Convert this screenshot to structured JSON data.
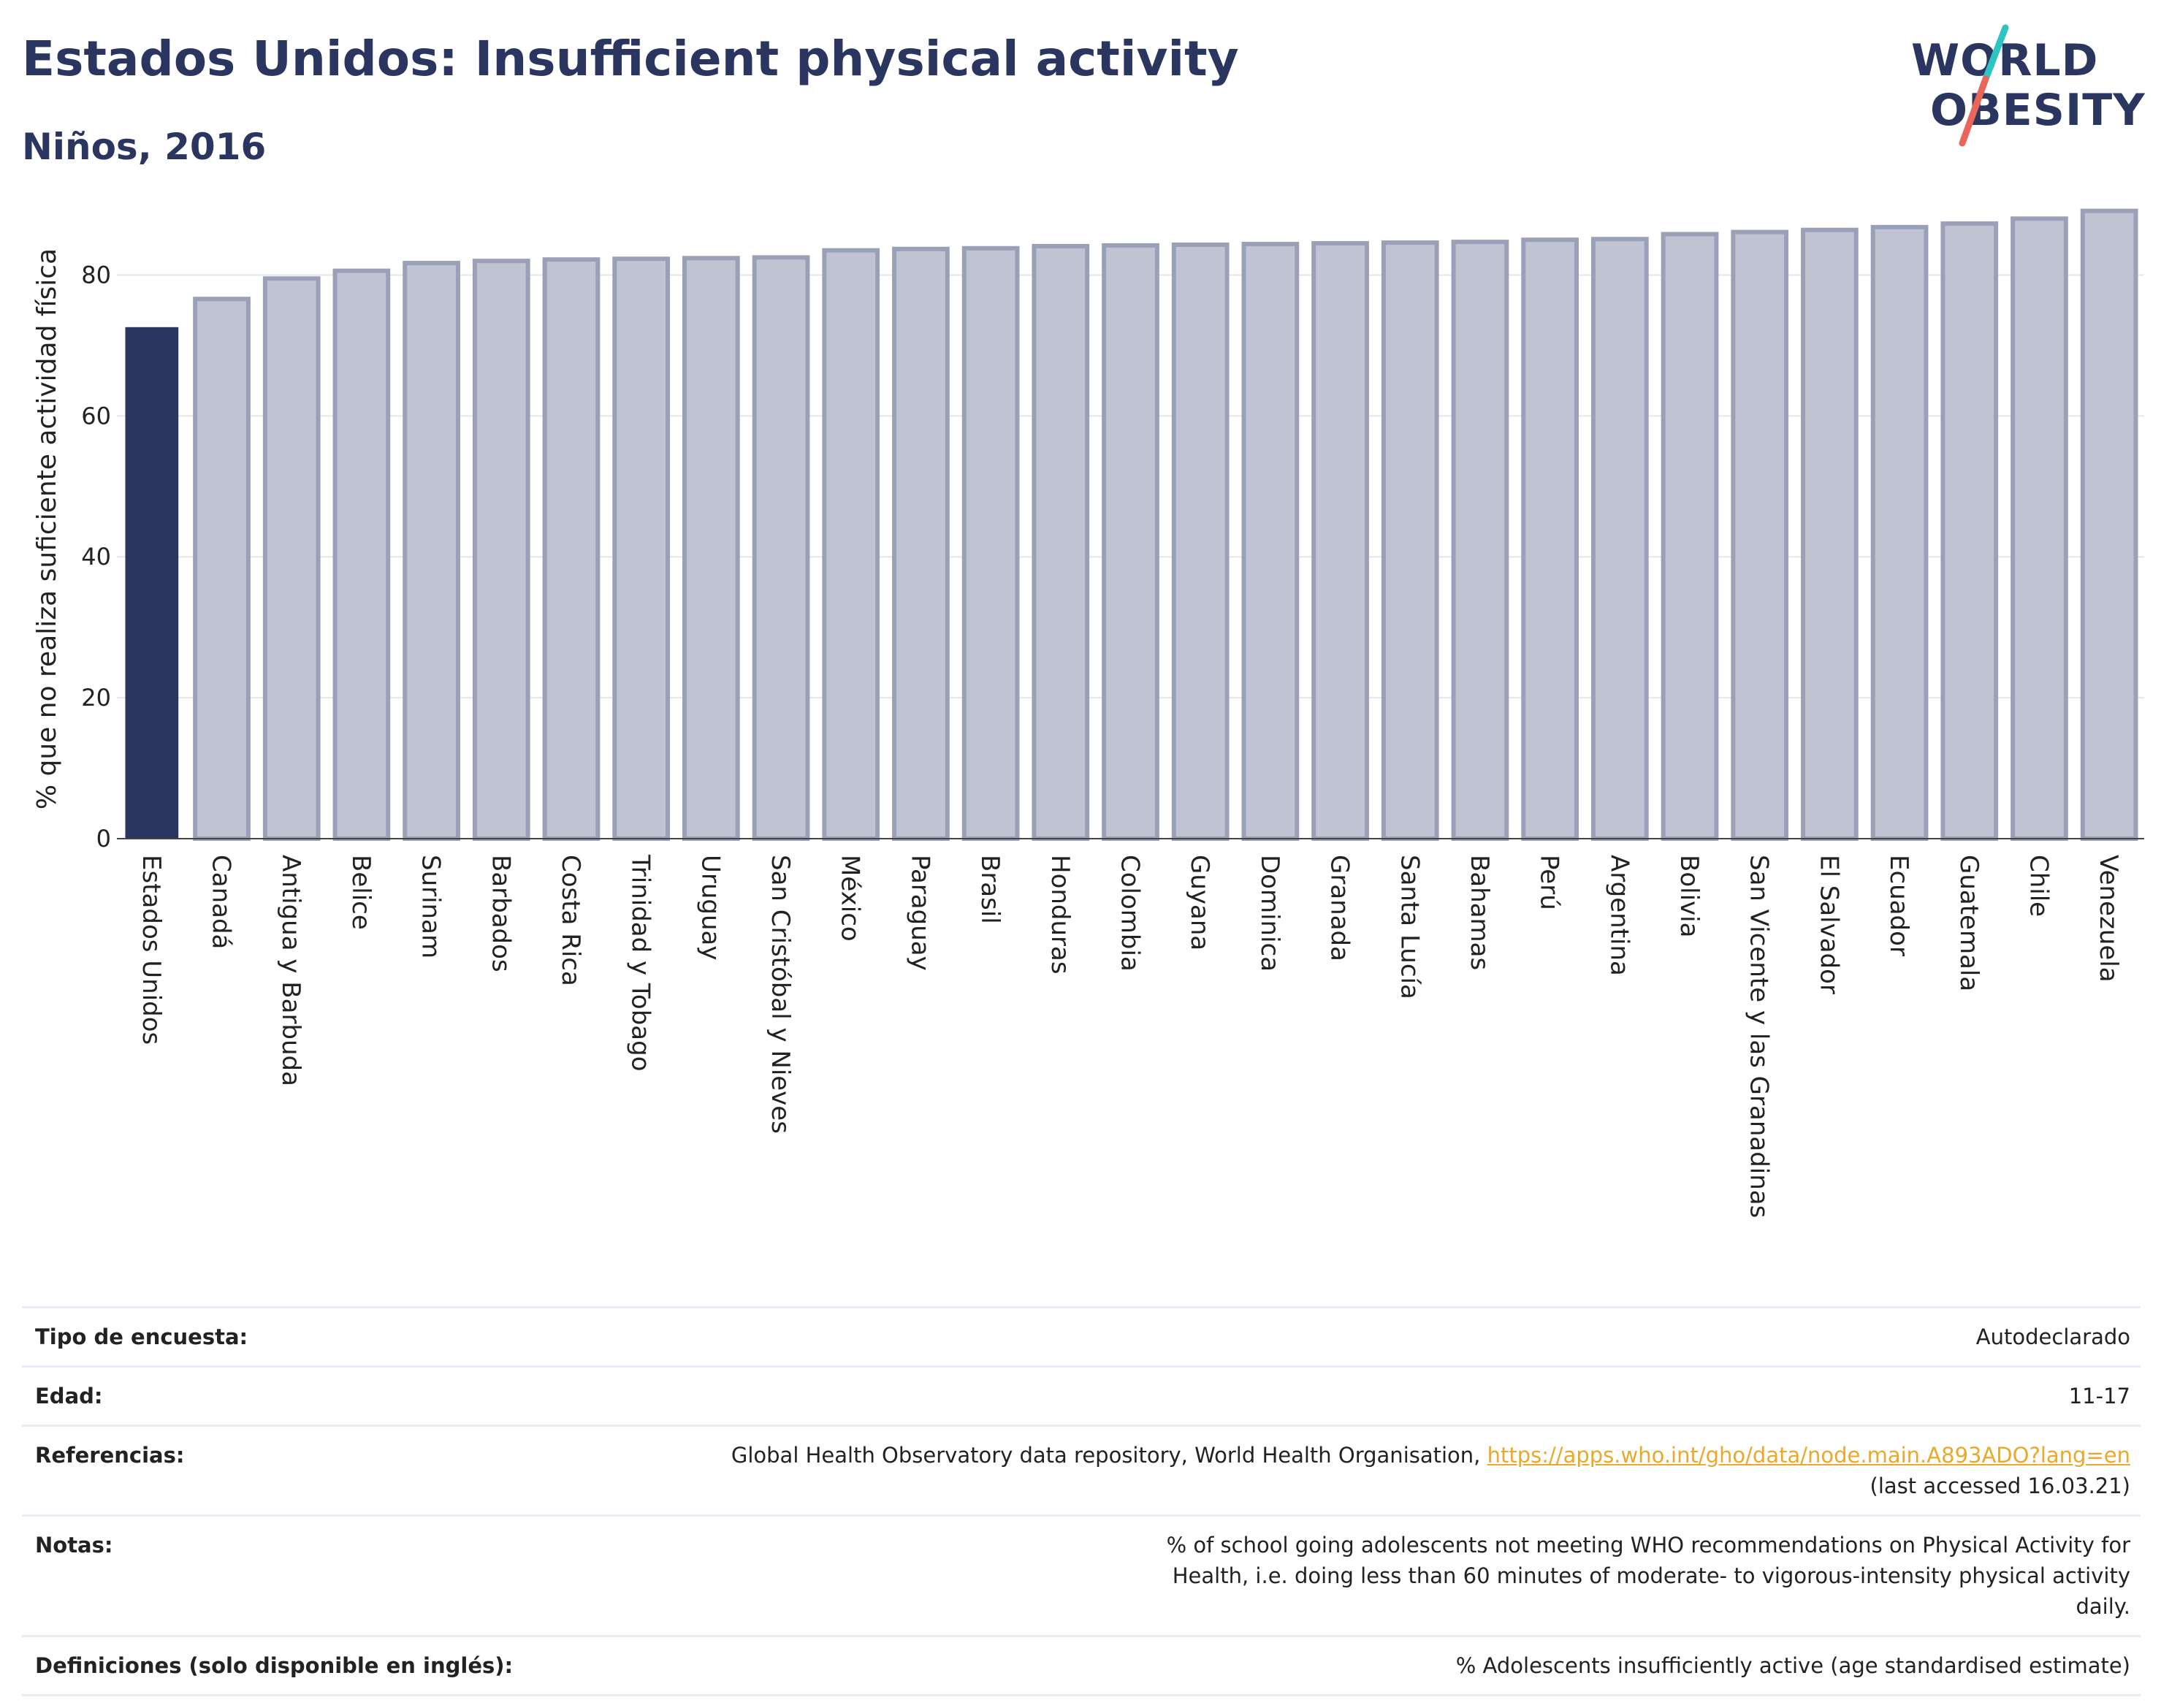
{
  "header": {
    "title": "Estados Unidos: Insufficient physical activity",
    "subtitle": "Niños, 2016"
  },
  "logo": {
    "line1": "WORLD",
    "line2": "OBESITY",
    "colors": {
      "text": "#2a3560",
      "slash_top": "#2ec4c1",
      "slash_bottom": "#e8675a"
    }
  },
  "colors": {
    "highlight_bar": "#2a3560",
    "bar_fill": "#c0c4d2",
    "bar_stroke": "#9aa0b8",
    "grid": "#e6e6e6",
    "link": "#e9a92b"
  },
  "chart_data": {
    "type": "bar",
    "title": "",
    "xlabel": "",
    "ylabel": "% que no realiza suficiente actividad física",
    "ylim": [
      0,
      90
    ],
    "yticks": [
      0,
      20,
      40,
      60,
      80
    ],
    "grid": true,
    "highlight": "Estados Unidos",
    "categories": [
      "Estados Unidos",
      "Canadá",
      "Antigua y Barbuda",
      "Belice",
      "Surinam",
      "Barbados",
      "Costa Rica",
      "Trinidad y Tobago",
      "Uruguay",
      "San Cristóbal y Nieves",
      "México",
      "Paraguay",
      "Brasil",
      "Honduras",
      "Colombia",
      "Guyana",
      "Dominica",
      "Granada",
      "Santa Lucía",
      "Bahamas",
      "Perú",
      "Argentina",
      "Bolivia",
      "San Vicente y las Granadinas",
      "El Salvador",
      "Ecuador",
      "Guatemala",
      "Chile",
      "Venezuela"
    ],
    "values": [
      72.6,
      76.6,
      79.5,
      80.6,
      81.7,
      82.0,
      82.2,
      82.3,
      82.4,
      82.5,
      83.5,
      83.7,
      83.8,
      84.1,
      84.2,
      84.3,
      84.4,
      84.5,
      84.6,
      84.7,
      85.0,
      85.1,
      85.8,
      86.1,
      86.4,
      86.8,
      87.3,
      88.0,
      89.1
    ]
  },
  "meta": {
    "rows": [
      {
        "label": "Tipo de encuesta:",
        "value": "Autodeclarado"
      },
      {
        "label": "Edad:",
        "value": "11-17"
      },
      {
        "label": "Referencias:",
        "value_prefix": "Global Health Observatory data repository, World Health Organisation, ",
        "link": "https://apps.who.int/gho/data/node.main.A893ADO?lang=en",
        "value_suffix": "(last accessed 16.03.21)"
      },
      {
        "label": "Notas:",
        "value": "% of school going adolescents not meeting WHO recommendations on Physical Activity for Health, i.e. doing less than 60 minutes of moderate- to vigorous-intensity physical activity daily."
      },
      {
        "label": "Definiciones (solo disponible en inglés):",
        "value": "% Adolescents insufficiently active (age standardised estimate)"
      }
    ]
  }
}
